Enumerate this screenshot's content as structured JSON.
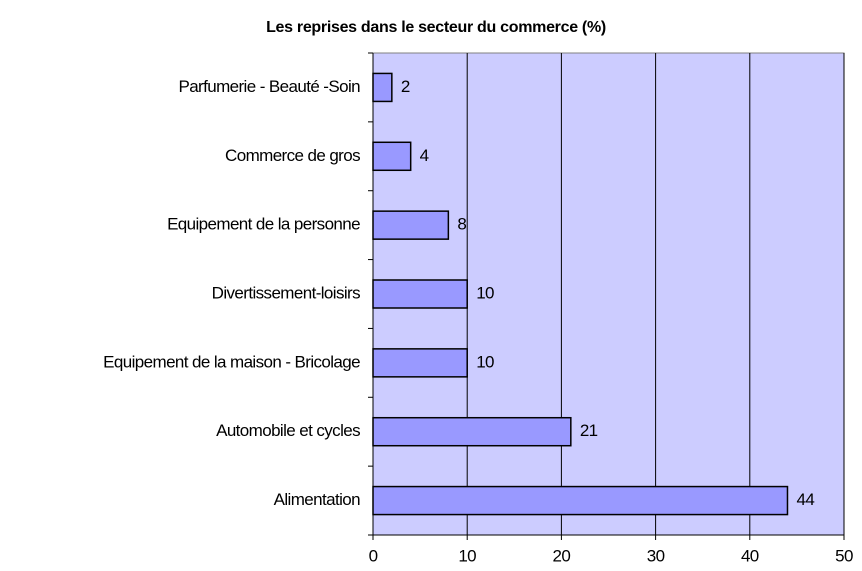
{
  "chart_data": {
    "type": "bar",
    "orientation": "horizontal",
    "title": "Les reprises dans le secteur du commerce (%)",
    "categories": [
      "Parfumerie - Beauté -Soin",
      "Commerce de gros",
      "Equipement de la personne",
      "Divertissement-loisirs",
      "Equipement de la maison - Bricolage",
      "Automobile et cycles",
      "Alimentation"
    ],
    "values": [
      2,
      4,
      8,
      10,
      10,
      21,
      44
    ],
    "color": "#9999ff",
    "background": "#ccccff",
    "xlim": [
      0,
      50
    ],
    "xticks": [
      0,
      10,
      20,
      30,
      40,
      50
    ],
    "grid": true
  }
}
